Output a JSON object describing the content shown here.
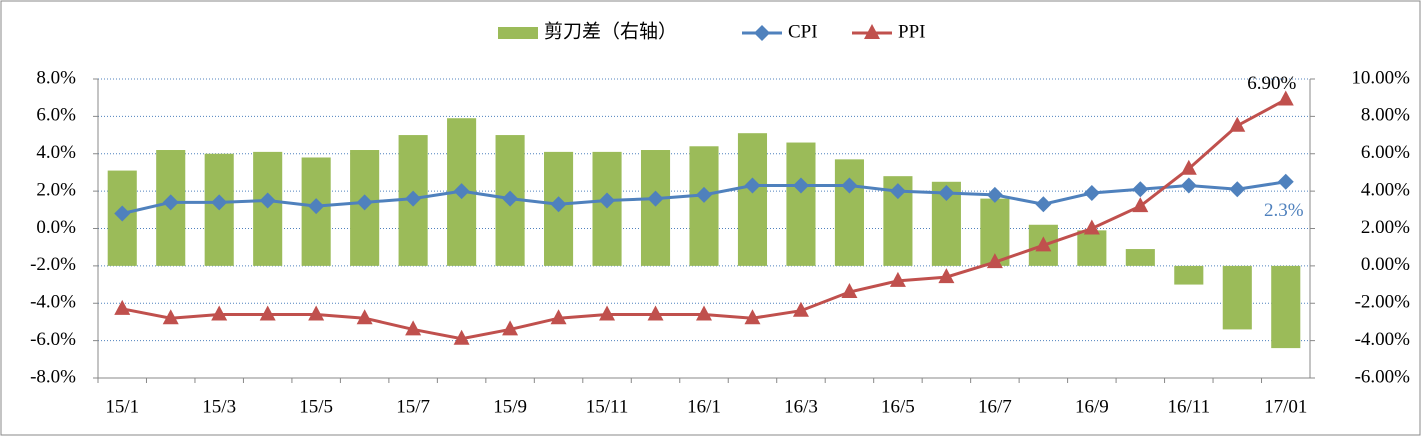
{
  "chart_data": {
    "type": "bar",
    "categories": [
      "15/1",
      null,
      "15/3",
      null,
      "15/5",
      null,
      "15/7",
      null,
      "15/9",
      null,
      "15/11",
      null,
      "16/1",
      null,
      "16/3",
      null,
      "16/5",
      null,
      "16/7",
      null,
      "16/9",
      null,
      "16/11",
      null,
      "17/01"
    ],
    "series": [
      {
        "name": "剪刀差（右轴）",
        "type": "bar",
        "axis": "y2",
        "color": "#9bbb59",
        "values": [
          5.1,
          6.2,
          6.0,
          6.1,
          5.8,
          6.2,
          7.0,
          7.9,
          7.0,
          6.1,
          6.1,
          6.2,
          6.4,
          7.1,
          6.6,
          5.7,
          4.8,
          4.5,
          3.6,
          2.2,
          1.9,
          0.9,
          -1.0,
          -3.4,
          -4.4
        ]
      },
      {
        "name": "CPI",
        "type": "line",
        "marker": "diamond",
        "color": "#4f81bd",
        "values": [
          0.8,
          1.4,
          1.4,
          1.5,
          1.2,
          1.4,
          1.6,
          2.0,
          1.6,
          1.3,
          1.5,
          1.6,
          1.8,
          2.3,
          2.3,
          2.3,
          2.0,
          1.9,
          1.8,
          1.3,
          1.9,
          2.1,
          2.3,
          2.1,
          2.5
        ]
      },
      {
        "name": "PPI",
        "type": "line",
        "marker": "triangle",
        "color": "#c0504d",
        "values": [
          -4.3,
          -4.8,
          -4.6,
          -4.6,
          -4.6,
          -4.8,
          -5.4,
          -5.9,
          -5.4,
          -4.8,
          -4.6,
          -4.6,
          -4.6,
          -4.8,
          -4.4,
          -3.4,
          -2.8,
          -2.6,
          -1.8,
          -0.9,
          0.0,
          1.2,
          3.2,
          5.5,
          6.9
        ],
        "value_labels": [
          null,
          null,
          null,
          null,
          null,
          null,
          null,
          null,
          null,
          null,
          null,
          null,
          null,
          null,
          null,
          null,
          null,
          null,
          null,
          null,
          null,
          null,
          null,
          null,
          "6.90%"
        ]
      }
    ],
    "annotations": [
      "2.3%"
    ],
    "ylim": [
      -8,
      8
    ],
    "yticks": [
      {
        "value": -8,
        "label": "-8.0%"
      },
      {
        "value": -6,
        "label": "-6.0%"
      },
      {
        "value": -4,
        "label": "-4.0%"
      },
      {
        "value": -2,
        "label": "-2.0%"
      },
      {
        "value": 0,
        "label": "0.0%"
      },
      {
        "value": 2,
        "label": "2.0%"
      },
      {
        "value": 4,
        "label": "4.0%"
      },
      {
        "value": 6,
        "label": "6.0%"
      },
      {
        "value": 8,
        "label": "8.0%"
      }
    ],
    "y2lim": [
      -6,
      10
    ],
    "y2ticks": [
      {
        "value": -6,
        "label": "-6.00%"
      },
      {
        "value": -4,
        "label": "-4.00%"
      },
      {
        "value": -2,
        "label": "-2.00%"
      },
      {
        "value": 0,
        "label": "0.00%"
      },
      {
        "value": 2,
        "label": "2.00%"
      },
      {
        "value": 4,
        "label": "4.00%"
      },
      {
        "value": 6,
        "label": "6.00%"
      },
      {
        "value": 8,
        "label": "8.00%"
      },
      {
        "value": 10,
        "label": "10.00%"
      }
    ],
    "grid": true,
    "legend": "top"
  }
}
